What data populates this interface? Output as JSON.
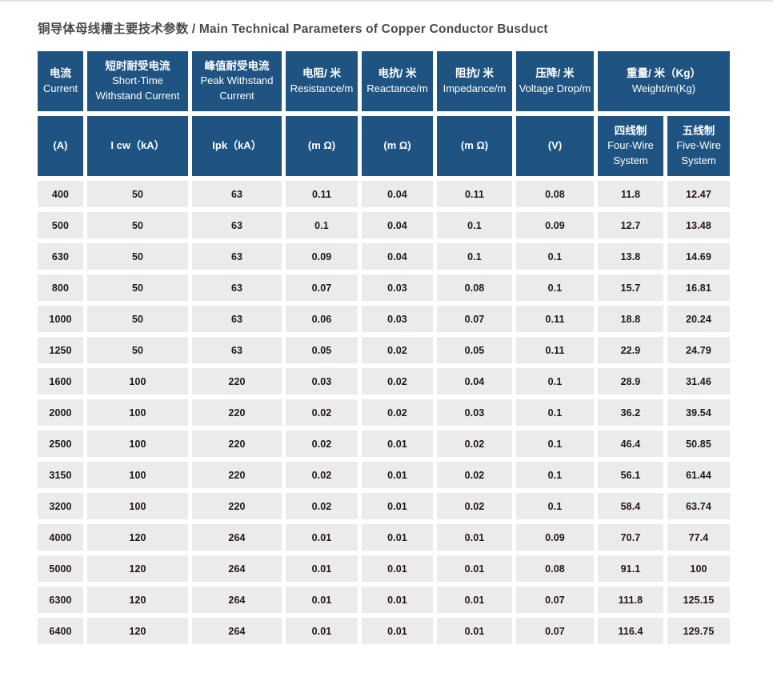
{
  "page": {
    "title": "铜导体母线槽主要技术参数 / Main Technical Parameters of Copper Conductor Busduct"
  },
  "colors": {
    "header_bg": "#1f5482",
    "header_text": "#ffffff",
    "cell_bg": "#ebebeb",
    "cell_text": "#231815",
    "title_text": "#4a4a4a"
  },
  "table": {
    "header_row1": [
      {
        "zh": "电流",
        "en": "Current"
      },
      {
        "zh": "短时耐受电流",
        "en": "Short-Time Withstand Current"
      },
      {
        "zh": "峰值耐受电流",
        "en": "Peak Withstand Current"
      },
      {
        "zh": "电阻/ 米",
        "en": "Resistance/m"
      },
      {
        "zh": "电抗/ 米",
        "en": "Reactance/m"
      },
      {
        "zh": "阻抗/ 米",
        "en": "Impedance/m"
      },
      {
        "zh": "压降/ 米",
        "en": "Voltage Drop/m"
      },
      {
        "zh": "重量/ 米（Kg）",
        "en": "Weight/m(Kg)"
      }
    ],
    "header_row2": {
      "col1": "(A)",
      "col2": "I cw（kA）",
      "col3": "Ipk（kA）",
      "col4": "(m Ω)",
      "col5": "(m Ω)",
      "col6": "(m Ω)",
      "col7": "(V)",
      "col8": {
        "zh": "四线制",
        "en": "Four-Wire System"
      },
      "col9": {
        "zh": "五线制",
        "en": "Five-Wire System"
      }
    },
    "rows": [
      [
        "400",
        "50",
        "63",
        "0.11",
        "0.04",
        "0.11",
        "0.08",
        "11.8",
        "12.47"
      ],
      [
        "500",
        "50",
        "63",
        "0.1",
        "0.04",
        "0.1",
        "0.09",
        "12.7",
        "13.48"
      ],
      [
        "630",
        "50",
        "63",
        "0.09",
        "0.04",
        "0.1",
        "0.1",
        "13.8",
        "14.69"
      ],
      [
        "800",
        "50",
        "63",
        "0.07",
        "0.03",
        "0.08",
        "0.1",
        "15.7",
        "16.81"
      ],
      [
        "1000",
        "50",
        "63",
        "0.06",
        "0.03",
        "0.07",
        "0.11",
        "18.8",
        "20.24"
      ],
      [
        "1250",
        "50",
        "63",
        "0.05",
        "0.02",
        "0.05",
        "0.11",
        "22.9",
        "24.79"
      ],
      [
        "1600",
        "100",
        "220",
        "0.03",
        "0.02",
        "0.04",
        "0.1",
        "28.9",
        "31.46"
      ],
      [
        "2000",
        "100",
        "220",
        "0.02",
        "0.02",
        "0.03",
        "0.1",
        "36.2",
        "39.54"
      ],
      [
        "2500",
        "100",
        "220",
        "0.02",
        "0.01",
        "0.02",
        "0.1",
        "46.4",
        "50.85"
      ],
      [
        "3150",
        "100",
        "220",
        "0.02",
        "0.01",
        "0.02",
        "0.1",
        "56.1",
        "61.44"
      ],
      [
        "3200",
        "100",
        "220",
        "0.02",
        "0.01",
        "0.02",
        "0.1",
        "58.4",
        "63.74"
      ],
      [
        "4000",
        "120",
        "264",
        "0.01",
        "0.01",
        "0.01",
        "0.09",
        "70.7",
        "77.4"
      ],
      [
        "5000",
        "120",
        "264",
        "0.01",
        "0.01",
        "0.01",
        "0.08",
        "91.1",
        "100"
      ],
      [
        "6300",
        "120",
        "264",
        "0.01",
        "0.01",
        "0.01",
        "0.07",
        "111.8",
        "125.15"
      ],
      [
        "6400",
        "120",
        "264",
        "0.01",
        "0.01",
        "0.01",
        "0.07",
        "116.4",
        "129.75"
      ]
    ]
  }
}
